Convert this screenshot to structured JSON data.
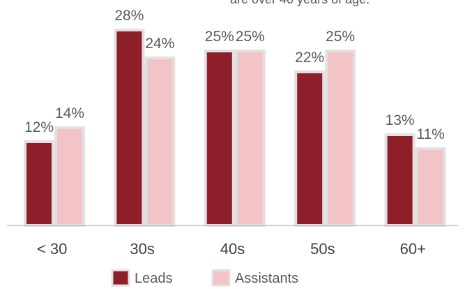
{
  "header": {
    "cropped_text": "are over 40 years of age."
  },
  "chart_data": {
    "type": "bar",
    "categories": [
      "< 30",
      "30s",
      "40s",
      "50s",
      "60+"
    ],
    "series": [
      {
        "name": "Leads",
        "values": [
          12,
          28,
          25,
          22,
          13
        ],
        "labels": [
          "12%",
          "28%",
          "25%",
          "22%",
          "13%"
        ],
        "color": "#8E1F2A"
      },
      {
        "name": "Assistants",
        "values": [
          14,
          24,
          25,
          25,
          11
        ],
        "labels": [
          "14%",
          "24%",
          "25%",
          "25%",
          "11%"
        ],
        "color": "#F2C4C7"
      }
    ],
    "ylim": [
      0,
      30
    ],
    "grid": false,
    "legend": "bottom",
    "bar_outline_color": "#E1E1E1",
    "axis_color": "#BFBFBF"
  }
}
